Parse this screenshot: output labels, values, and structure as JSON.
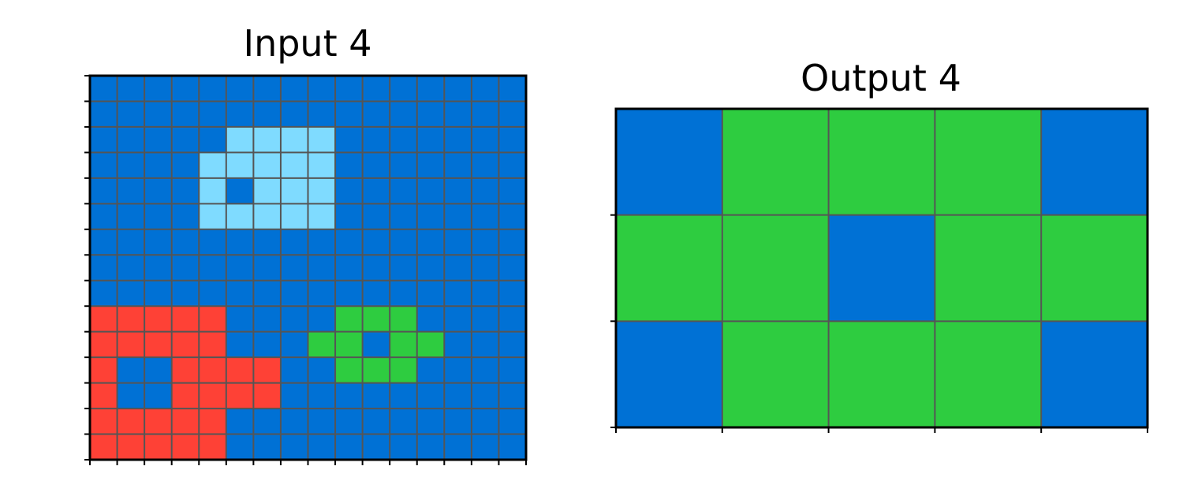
{
  "panels": {
    "input": {
      "title": "Input 4",
      "grid": [
        "1111111111111111",
        "1111111111111111",
        "1111188881111111",
        "1111888881111111",
        "1111818881111111",
        "1111888881111111",
        "1111111111111111",
        "1111111111111111",
        "1111111111111111",
        "2222211113331111",
        "2222211133133111",
        "2112222113331111",
        "2112222111111111",
        "2222211111111111",
        "2222211111111111"
      ]
    },
    "output": {
      "title": "Output 4",
      "grid": [
        "13331",
        "33133",
        "13331"
      ]
    }
  },
  "palette": {
    "1": "#0071d5",
    "2": "#fe4136",
    "3": "#2ecc40",
    "8": "#7fdbff"
  },
  "gridline_color": "#555555"
}
